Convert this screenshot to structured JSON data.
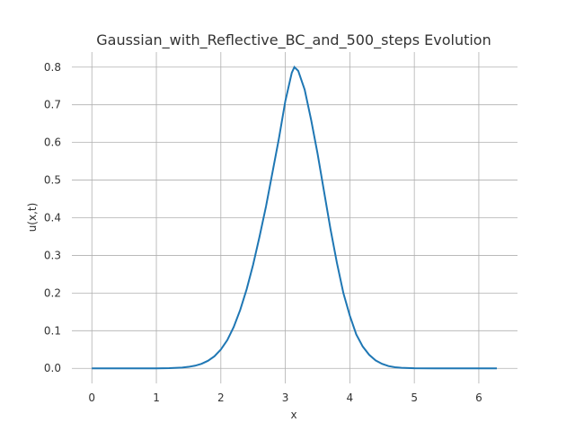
{
  "chart_data": {
    "type": "line",
    "title": "Gaussian_with_Reflective_BC_and_500_steps Evolution",
    "xlabel": "x",
    "ylabel": "u(x,t)",
    "xlim": [
      -0.31,
      6.6
    ],
    "ylim": [
      -0.04,
      0.84
    ],
    "xticks": [
      0,
      1,
      2,
      3,
      4,
      5,
      6
    ],
    "yticks": [
      0.0,
      0.1,
      0.2,
      0.3,
      0.4,
      0.5,
      0.6,
      0.7,
      0.8
    ],
    "ytick_labels": [
      "0.0",
      "0.1",
      "0.2",
      "0.3",
      "0.4",
      "0.5",
      "0.6",
      "0.7",
      "0.8"
    ],
    "grid": true,
    "color": "#1f77b4",
    "series": [
      {
        "x": [
          0.0,
          0.5,
          1.0,
          1.2,
          1.4,
          1.5,
          1.6,
          1.7,
          1.8,
          1.9,
          2.0,
          2.1,
          2.2,
          2.3,
          2.4,
          2.5,
          2.6,
          2.7,
          2.8,
          2.9,
          3.0,
          3.1,
          3.14,
          3.2,
          3.3,
          3.4,
          3.5,
          3.6,
          3.7,
          3.8,
          3.9,
          4.0,
          4.1,
          4.2,
          4.3,
          4.4,
          4.5,
          4.6,
          4.7,
          4.8,
          5.0,
          5.3,
          5.6,
          6.0,
          6.28
        ],
        "y": [
          0.0,
          0.0,
          0.0,
          0.0005,
          0.002,
          0.004,
          0.007,
          0.012,
          0.02,
          0.032,
          0.05,
          0.075,
          0.11,
          0.155,
          0.21,
          0.275,
          0.35,
          0.43,
          0.52,
          0.61,
          0.71,
          0.785,
          0.8,
          0.79,
          0.74,
          0.66,
          0.57,
          0.47,
          0.37,
          0.28,
          0.2,
          0.14,
          0.09,
          0.058,
          0.036,
          0.021,
          0.012,
          0.006,
          0.003,
          0.0015,
          0.0003,
          0.0,
          0.0,
          0.0,
          0.0
        ]
      }
    ]
  }
}
